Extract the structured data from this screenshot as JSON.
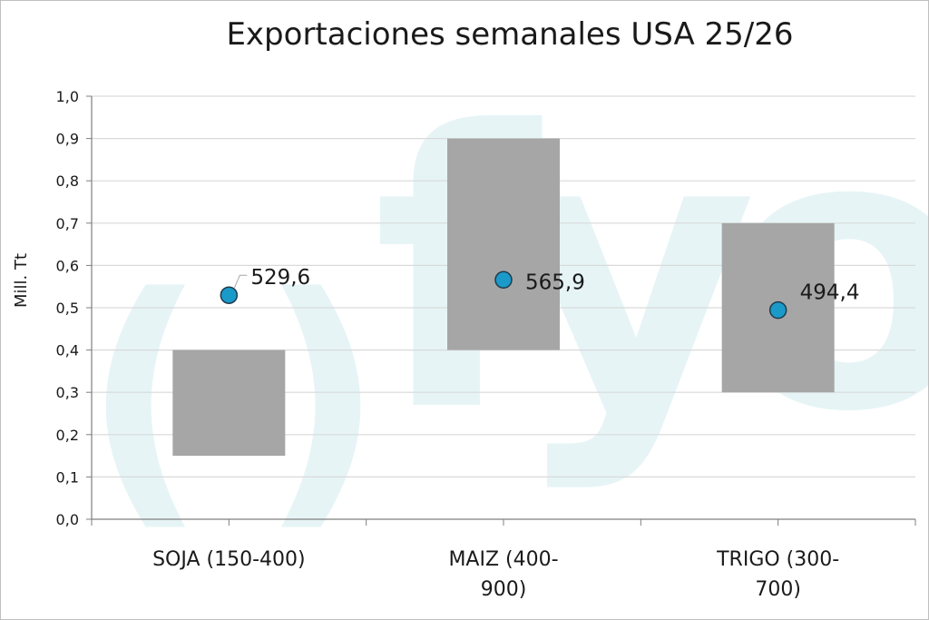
{
  "chart_data": {
    "type": "bar",
    "title": "Exportaciones semanales USA  25/26",
    "ylabel": "Mill. Tt",
    "xlabel": "",
    "ylim": [
      0,
      1.0
    ],
    "ytick_labels": [
      "0,0",
      "0,1",
      "0,2",
      "0,3",
      "0,4",
      "0,5",
      "0,6",
      "0,7",
      "0,8",
      "0,9",
      "1,0"
    ],
    "grid": true,
    "categories": [
      {
        "lines": [
          "SOJA (150-400)"
        ],
        "range": [
          0.15,
          0.4
        ],
        "actual": 0.5296,
        "actual_label": "529,6"
      },
      {
        "lines": [
          "MAIZ (400-",
          "900)"
        ],
        "range": [
          0.4,
          0.9
        ],
        "actual": 0.5659,
        "actual_label": "565,9"
      },
      {
        "lines": [
          "TRIGO (300-",
          "700)"
        ],
        "range": [
          0.3,
          0.7
        ],
        "actual": 0.4944,
        "actual_label": "494,4"
      }
    ],
    "colors": {
      "range_bar": "#a6a6a6",
      "marker": "#1a9ac9",
      "grid": "#d9d9d9"
    }
  }
}
